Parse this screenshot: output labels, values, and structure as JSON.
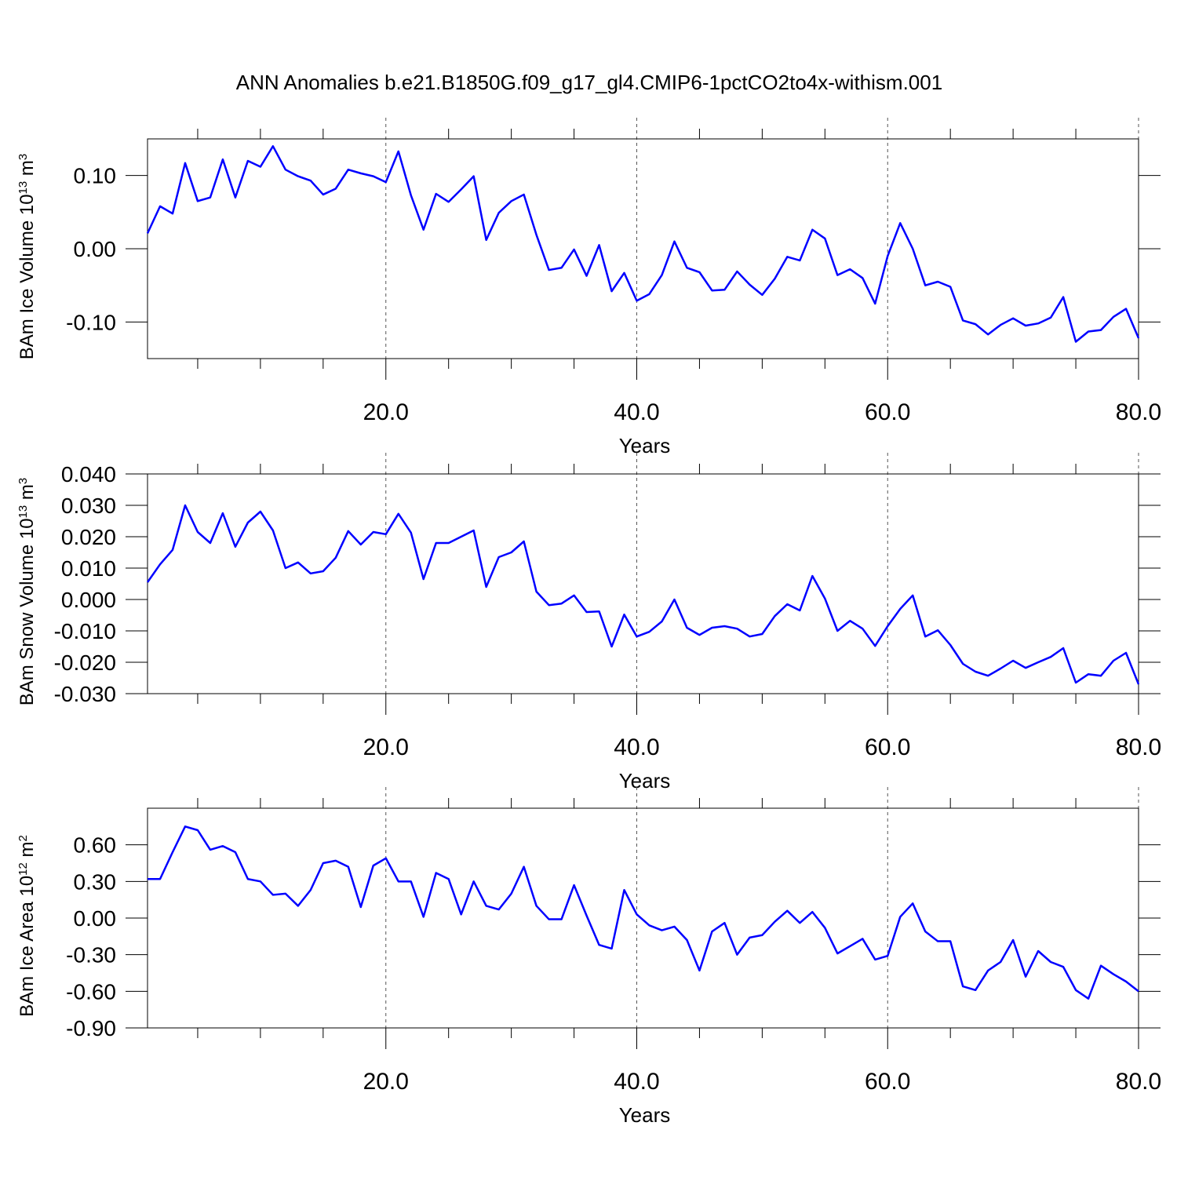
{
  "chart_data": [
    {
      "type": "line",
      "title": "ANN Anomalies b.e21.B1850G.f09_g17_gl4.CMIP6-1pctCO2to4x-withism.001",
      "ylabel": [
        "BAm Ice Volume 10",
        "13",
        " m",
        "3"
      ],
      "xlabel": "Years",
      "color": "#0000ff",
      "x": [
        1,
        2,
        3,
        4,
        5,
        6,
        7,
        8,
        9,
        10,
        11,
        12,
        13,
        14,
        15,
        16,
        17,
        18,
        19,
        20,
        21,
        22,
        23,
        24,
        25,
        26,
        27,
        28,
        29,
        30,
        31,
        32,
        33,
        34,
        35,
        36,
        37,
        38,
        39,
        40,
        41,
        42,
        43,
        44,
        45,
        46,
        47,
        48,
        49,
        50,
        51,
        52,
        53,
        54,
        55,
        56,
        57,
        58,
        59,
        60,
        61,
        62,
        63,
        64,
        65,
        66,
        67,
        68,
        69,
        70,
        71,
        72,
        73,
        74,
        75,
        76,
        77,
        78,
        79,
        80
      ],
      "values": [
        0.021,
        0.058,
        0.048,
        0.117,
        0.065,
        0.07,
        0.122,
        0.07,
        0.12,
        0.112,
        0.14,
        0.108,
        0.099,
        0.093,
        0.074,
        0.082,
        0.108,
        0.103,
        0.099,
        0.091,
        0.133,
        0.073,
        0.026,
        0.075,
        0.064,
        0.081,
        0.099,
        0.012,
        0.049,
        0.065,
        0.074,
        0.019,
        -0.029,
        -0.026,
        -0.001,
        -0.037,
        0.005,
        -0.058,
        -0.033,
        -0.071,
        -0.062,
        -0.036,
        0.01,
        -0.026,
        -0.032,
        -0.057,
        -0.056,
        -0.031,
        -0.049,
        -0.063,
        -0.041,
        -0.011,
        -0.016,
        0.026,
        0.014,
        -0.036,
        -0.028,
        -0.04,
        -0.075,
        -0.01,
        0.035,
        0.0,
        -0.05,
        -0.045,
        -0.052,
        -0.098,
        -0.103,
        -0.117,
        -0.104,
        -0.095,
        -0.105,
        -0.102,
        -0.094,
        -0.066,
        -0.127,
        -0.113,
        -0.111,
        -0.093,
        -0.082,
        -0.122
      ],
      "xlim": [
        1,
        80
      ],
      "xticks": [
        {
          "value": 20,
          "label": "20.0"
        },
        {
          "value": 40,
          "label": "40.0"
        },
        {
          "value": 60,
          "label": "60.0"
        },
        {
          "value": 80,
          "label": "80.0"
        }
      ],
      "xminorticks": [
        5,
        10,
        15,
        25,
        30,
        35,
        45,
        50,
        55,
        65,
        70,
        75
      ],
      "ylim": [
        -0.15,
        0.15
      ],
      "yticks": [
        {
          "value": 0.1,
          "label": "0.10"
        },
        {
          "value": 0,
          "label": "0.00"
        },
        {
          "value": -0.1,
          "label": "-0.10"
        }
      ],
      "grid": true
    },
    {
      "type": "line",
      "ylabel": [
        "BAm Snow Volume 10",
        "13",
        " m",
        "3"
      ],
      "xlabel": "Years",
      "color": "#0000ff",
      "x": [
        1,
        2,
        3,
        4,
        5,
        6,
        7,
        8,
        9,
        10,
        11,
        12,
        13,
        14,
        15,
        16,
        17,
        18,
        19,
        20,
        21,
        22,
        23,
        24,
        25,
        26,
        27,
        28,
        29,
        30,
        31,
        32,
        33,
        34,
        35,
        36,
        37,
        38,
        39,
        40,
        41,
        42,
        43,
        44,
        45,
        46,
        47,
        48,
        49,
        50,
        51,
        52,
        53,
        54,
        55,
        56,
        57,
        58,
        59,
        60,
        61,
        62,
        63,
        64,
        65,
        66,
        67,
        68,
        69,
        70,
        71,
        72,
        73,
        74,
        75,
        76,
        77,
        78,
        79,
        80
      ],
      "values": [
        0.0055,
        0.0112,
        0.0158,
        0.03,
        0.0215,
        0.018,
        0.0275,
        0.0168,
        0.0245,
        0.028,
        0.022,
        0.01,
        0.0118,
        0.0083,
        0.009,
        0.0133,
        0.0218,
        0.0175,
        0.0215,
        0.0208,
        0.0273,
        0.0213,
        0.0065,
        0.018,
        0.018,
        0.02,
        0.022,
        0.004,
        0.0135,
        0.015,
        0.0185,
        0.0025,
        -0.0018,
        -0.0013,
        0.0013,
        -0.004,
        -0.0038,
        -0.015,
        -0.0048,
        -0.0118,
        -0.0103,
        -0.007,
        0.0,
        -0.009,
        -0.0113,
        -0.009,
        -0.0085,
        -0.0093,
        -0.0118,
        -0.011,
        -0.0053,
        -0.0015,
        -0.0035,
        0.0075,
        0.0003,
        -0.01,
        -0.0068,
        -0.0093,
        -0.0148,
        -0.0085,
        -0.003,
        0.0013,
        -0.0118,
        -0.0098,
        -0.0145,
        -0.0205,
        -0.023,
        -0.0243,
        -0.022,
        -0.0195,
        -0.0218,
        -0.02,
        -0.0183,
        -0.0155,
        -0.0265,
        -0.0238,
        -0.0243,
        -0.0195,
        -0.017,
        -0.027
      ],
      "xlim": [
        1,
        80
      ],
      "xticks": [
        {
          "value": 20,
          "label": "20.0"
        },
        {
          "value": 40,
          "label": "40.0"
        },
        {
          "value": 60,
          "label": "60.0"
        },
        {
          "value": 80,
          "label": "80.0"
        }
      ],
      "xminorticks": [
        5,
        10,
        15,
        25,
        30,
        35,
        45,
        50,
        55,
        65,
        70,
        75
      ],
      "ylim": [
        -0.03,
        0.04
      ],
      "yticks": [
        {
          "value": 0.04,
          "label": "0.040"
        },
        {
          "value": 0.03,
          "label": "0.030"
        },
        {
          "value": 0.02,
          "label": "0.020"
        },
        {
          "value": 0.01,
          "label": "0.010"
        },
        {
          "value": 0,
          "label": "0.000"
        },
        {
          "value": -0.01,
          "label": "-0.010"
        },
        {
          "value": -0.02,
          "label": "-0.020"
        },
        {
          "value": -0.03,
          "label": "-0.030"
        }
      ],
      "grid": true
    },
    {
      "type": "line",
      "ylabel": [
        "BAm Ice Area 10",
        "12",
        " m",
        "2"
      ],
      "xlabel": "Years",
      "color": "#0000ff",
      "x": [
        1,
        2,
        3,
        4,
        5,
        6,
        7,
        8,
        9,
        10,
        11,
        12,
        13,
        14,
        15,
        16,
        17,
        18,
        19,
        20,
        21,
        22,
        23,
        24,
        25,
        26,
        27,
        28,
        29,
        30,
        31,
        32,
        33,
        34,
        35,
        36,
        37,
        38,
        39,
        40,
        41,
        42,
        43,
        44,
        45,
        46,
        47,
        48,
        49,
        50,
        51,
        52,
        53,
        54,
        55,
        56,
        57,
        58,
        59,
        60,
        61,
        62,
        63,
        64,
        65,
        66,
        67,
        68,
        69,
        70,
        71,
        72,
        73,
        74,
        75,
        76,
        77,
        78,
        79,
        80
      ],
      "values": [
        0.32,
        0.32,
        0.54,
        0.75,
        0.72,
        0.56,
        0.59,
        0.54,
        0.32,
        0.3,
        0.19,
        0.2,
        0.1,
        0.23,
        0.45,
        0.47,
        0.42,
        0.09,
        0.43,
        0.49,
        0.3,
        0.3,
        0.01,
        0.37,
        0.32,
        0.03,
        0.3,
        0.1,
        0.07,
        0.2,
        0.42,
        0.1,
        -0.01,
        -0.01,
        0.27,
        0.02,
        -0.22,
        -0.25,
        0.23,
        0.03,
        -0.06,
        -0.1,
        -0.07,
        -0.18,
        -0.43,
        -0.11,
        -0.04,
        -0.3,
        -0.16,
        -0.14,
        -0.03,
        0.06,
        -0.04,
        0.05,
        -0.08,
        -0.29,
        -0.23,
        -0.17,
        -0.34,
        -0.31,
        0.01,
        0.12,
        -0.11,
        -0.19,
        -0.19,
        -0.56,
        -0.59,
        -0.43,
        -0.36,
        -0.18,
        -0.48,
        -0.27,
        -0.36,
        -0.4,
        -0.59,
        -0.66,
        -0.39,
        -0.46,
        -0.52,
        -0.6
      ],
      "xlim": [
        1,
        80
      ],
      "xticks": [
        {
          "value": 20,
          "label": "20.0"
        },
        {
          "value": 40,
          "label": "40.0"
        },
        {
          "value": 60,
          "label": "60.0"
        },
        {
          "value": 80,
          "label": "80.0"
        }
      ],
      "xminorticks": [
        5,
        10,
        15,
        25,
        30,
        35,
        45,
        50,
        55,
        65,
        70,
        75
      ],
      "ylim": [
        -0.9,
        0.9
      ],
      "yticks": [
        {
          "value": 0.6,
          "label": "0.60"
        },
        {
          "value": 0.3,
          "label": "0.30"
        },
        {
          "value": 0,
          "label": "0.00"
        },
        {
          "value": -0.3,
          "label": "-0.30"
        },
        {
          "value": -0.6,
          "label": "-0.60"
        },
        {
          "value": -0.9,
          "label": "-0.90"
        }
      ],
      "grid": true
    }
  ]
}
